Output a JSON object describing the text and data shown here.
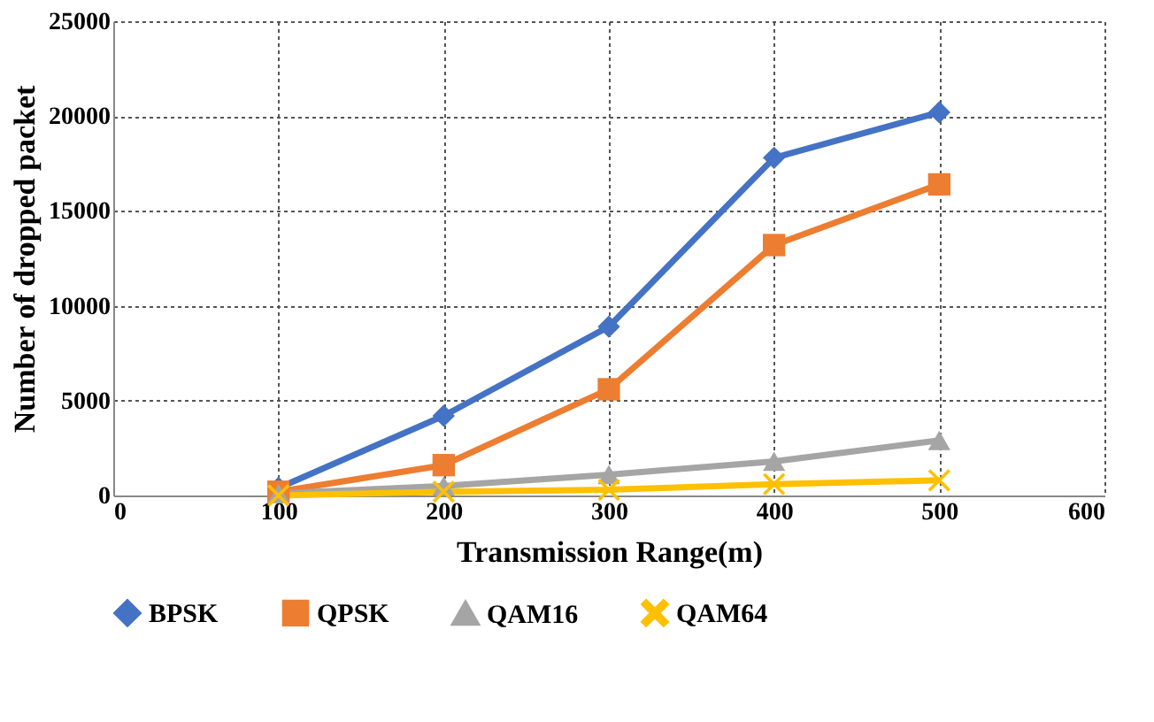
{
  "chart_data": {
    "type": "line",
    "xlabel": "Transmission Range(m)",
    "ylabel": "Number of dropped packet",
    "x": [
      100,
      200,
      300,
      400,
      500
    ],
    "series": [
      {
        "name": "BPSK",
        "color": "#4472c4",
        "marker": "diamond",
        "values": [
          400,
          4200,
          8900,
          17800,
          20200
        ]
      },
      {
        "name": "QPSK",
        "color": "#ed7d31",
        "marker": "square",
        "values": [
          200,
          1600,
          5600,
          13200,
          16400
        ]
      },
      {
        "name": "QAM16",
        "color": "#a5a5a5",
        "marker": "triangle",
        "values": [
          100,
          500,
          1100,
          1800,
          2900
        ]
      },
      {
        "name": "QAM64",
        "color": "#ffc000",
        "marker": "cross",
        "values": [
          0,
          200,
          300,
          600,
          800
        ]
      }
    ],
    "xlim": [
      0,
      600
    ],
    "xticks": [
      0,
      100,
      200,
      300,
      400,
      500,
      600
    ],
    "ylim": [
      0,
      25000
    ],
    "yticks": [
      0,
      5000,
      10000,
      15000,
      20000,
      25000
    ],
    "grid": true,
    "legend": "bottom",
    "line_style": "solid"
  }
}
